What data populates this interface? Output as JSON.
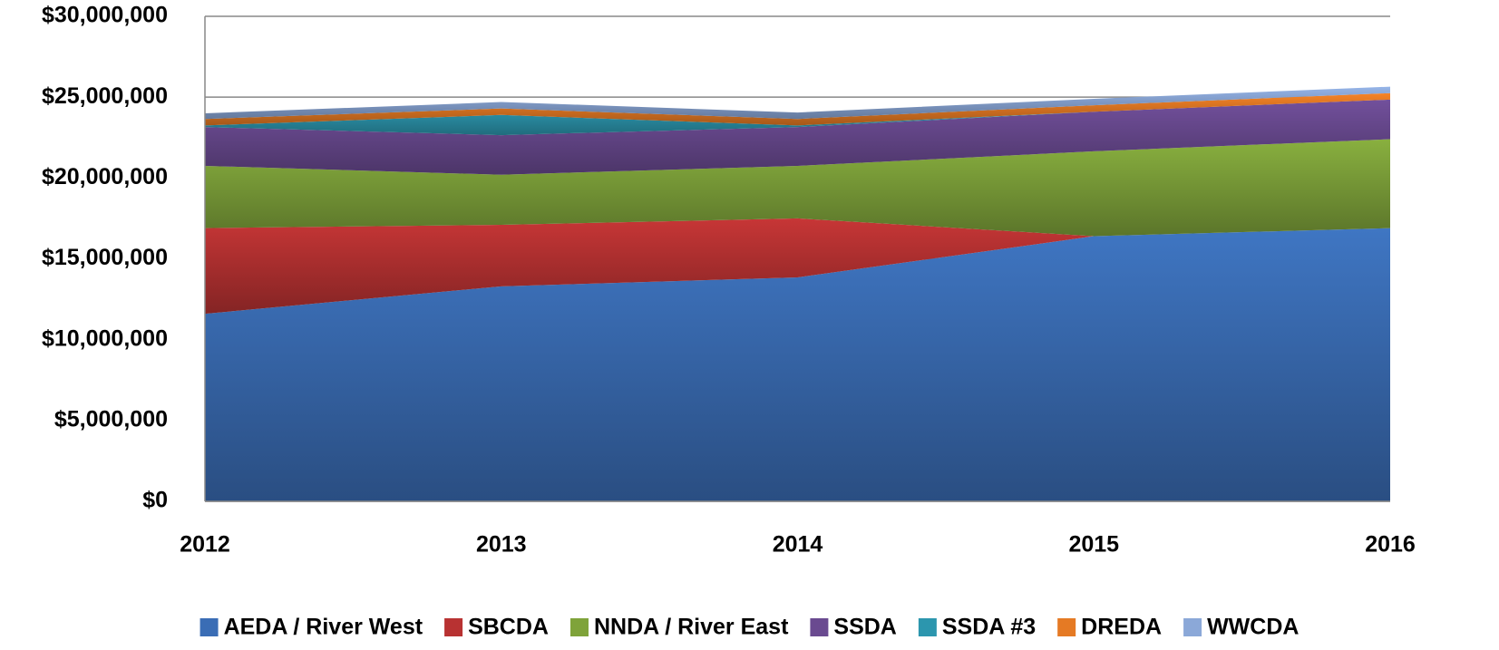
{
  "chart_data": {
    "type": "stacked_area",
    "categories": [
      "2012",
      "2013",
      "2014",
      "2015",
      "2016"
    ],
    "series": [
      {
        "name": "AEDA / River West",
        "color": "#3a6db5",
        "values": [
          11600000,
          13300000,
          13850000,
          16400000,
          16900000
        ]
      },
      {
        "name": "SBCDA",
        "color": "#b83232",
        "values": [
          5300000,
          3800000,
          3650000,
          0,
          0
        ]
      },
      {
        "name": "NNDA / River East",
        "color": "#7fa33a",
        "values": [
          3850000,
          3100000,
          3250000,
          5250000,
          5500000
        ]
      },
      {
        "name": "SSDA",
        "color": "#6a4a90",
        "values": [
          2400000,
          2450000,
          2400000,
          2450000,
          2450000
        ]
      },
      {
        "name": "SSDA #3",
        "color": "#2c96ae",
        "values": [
          100000,
          1250000,
          100000,
          0,
          0
        ]
      },
      {
        "name": "DREDA",
        "color": "#e57a24",
        "values": [
          400000,
          400000,
          400000,
          400000,
          400000
        ]
      },
      {
        "name": "WWCDA",
        "color": "#8ba8d8",
        "values": [
          350000,
          400000,
          400000,
          400000,
          400000
        ]
      }
    ],
    "ylim": [
      0,
      30000000
    ],
    "yticks": [
      {
        "value": 0,
        "label": "$0"
      },
      {
        "value": 5000000,
        "label": "$5,000,000"
      },
      {
        "value": 10000000,
        "label": "$10,000,000"
      },
      {
        "value": 15000000,
        "label": "$15,000,000"
      },
      {
        "value": 20000000,
        "label": "$20,000,000"
      },
      {
        "value": 25000000,
        "label": "$25,000,000"
      },
      {
        "value": 30000000,
        "label": "$30,000,000"
      }
    ],
    "grid": true,
    "legend": "bottom"
  }
}
